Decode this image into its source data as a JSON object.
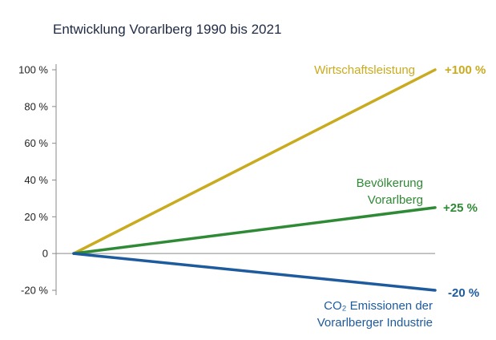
{
  "chart_data": {
    "type": "line",
    "title": "Entwicklung Vorarlberg 1990 bis 2021",
    "xlabel": "",
    "ylabel": "",
    "x": [
      "1990",
      "2021"
    ],
    "ylim": [
      -20,
      100
    ],
    "y_ticks": [
      {
        "value": 100,
        "label": "100 %"
      },
      {
        "value": 80,
        "label": "80 %"
      },
      {
        "value": 60,
        "label": "60 %"
      },
      {
        "value": 40,
        "label": "40 %"
      },
      {
        "value": 20,
        "label": "20 %"
      },
      {
        "value": 0,
        "label": "0"
      },
      {
        "value": -20,
        "label": "-20 %"
      }
    ],
    "grid": false,
    "legend": "inline labels at line ends",
    "series": [
      {
        "name": "Wirtschaftsleistung",
        "label_lines": [
          "Wirtschaftsleistung"
        ],
        "end_label": "+100 %",
        "values": [
          0,
          100
        ],
        "color": "#c9ab1f"
      },
      {
        "name": "Bevölkerung Vorarlberg",
        "label_lines": [
          "Bevölkerung",
          "Vorarlberg"
        ],
        "end_label": "+25 %",
        "values": [
          0,
          25
        ],
        "color": "#2e8a34"
      },
      {
        "name": "CO₂ Emissionen der Vorarlberger Industrie",
        "label_lines": [
          "CO₂ Emissionen der",
          "Vorarlberger Industrie"
        ],
        "end_label": "-20 %",
        "values": [
          0,
          -20
        ],
        "color": "#1d5a9e"
      }
    ],
    "colors": {
      "axis": "#8a8a8a",
      "text": "#222222",
      "title": "#1f2a44"
    }
  }
}
